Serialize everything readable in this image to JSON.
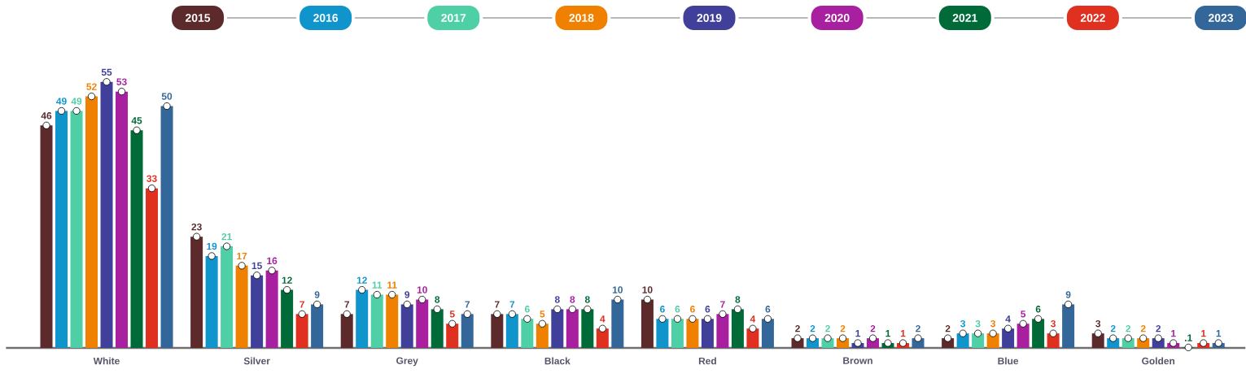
{
  "chart_data": {
    "type": "bar",
    "legend": "top",
    "marker": "circle",
    "categories": [
      "White",
      "Silver",
      "Grey",
      "Black",
      "Red",
      "Brown",
      "Blue",
      "Golden"
    ],
    "series": [
      {
        "name": "2015",
        "color": "#5c2a2a",
        "values": [
          46,
          23,
          7,
          7,
          10,
          2,
          2,
          3
        ],
        "value_labels": [
          "46",
          "23",
          "7",
          "7",
          "10",
          "2",
          "2",
          "3"
        ]
      },
      {
        "name": "2016",
        "color": "#0f94cc",
        "values": [
          49,
          19,
          12,
          7,
          6,
          2,
          3,
          2
        ],
        "value_labels": [
          "49",
          "19",
          "12",
          "7",
          "6",
          "2",
          "3",
          "2"
        ]
      },
      {
        "name": "2017",
        "color": "#4fcfa5",
        "values": [
          49,
          21,
          11,
          6,
          6,
          2,
          3,
          2
        ],
        "value_labels": [
          "49",
          "21",
          "11",
          "6",
          "6",
          "2",
          "3",
          "2"
        ]
      },
      {
        "name": "2018",
        "color": "#f08000",
        "values": [
          52,
          17,
          11,
          5,
          6,
          2,
          3,
          2
        ],
        "value_labels": [
          "52",
          "17",
          "11",
          "5",
          "6",
          "2",
          "3",
          "2"
        ]
      },
      {
        "name": "2019",
        "color": "#40409a",
        "values": [
          55,
          15,
          9,
          8,
          6,
          1,
          4,
          2
        ],
        "value_labels": [
          "55",
          "15",
          "9",
          "8",
          "6",
          "1",
          "4",
          "2"
        ]
      },
      {
        "name": "2020",
        "color": "#a820a0",
        "values": [
          53,
          16,
          10,
          8,
          7,
          2,
          5,
          1
        ],
        "value_labels": [
          "53",
          "16",
          "10",
          "8",
          "7",
          "2",
          "5",
          "1"
        ]
      },
      {
        "name": "2021",
        "color": "#006a38",
        "values": [
          45,
          12,
          8,
          8,
          8,
          1,
          6,
          0.1
        ],
        "value_labels": [
          "45",
          "12",
          "8",
          "8",
          "8",
          "1",
          "6",
          ".1"
        ]
      },
      {
        "name": "2022",
        "color": "#e03020",
        "values": [
          33,
          7,
          5,
          4,
          4,
          1,
          3,
          1
        ],
        "value_labels": [
          "33",
          "7",
          "5",
          "4",
          "4",
          "1",
          "3",
          "1"
        ]
      },
      {
        "name": "2023",
        "color": "#336699",
        "values": [
          50,
          9,
          7,
          10,
          6,
          2,
          9,
          1
        ],
        "value_labels": [
          "50",
          "9",
          "7",
          "10",
          "6",
          "2",
          "9",
          "1"
        ]
      }
    ]
  }
}
